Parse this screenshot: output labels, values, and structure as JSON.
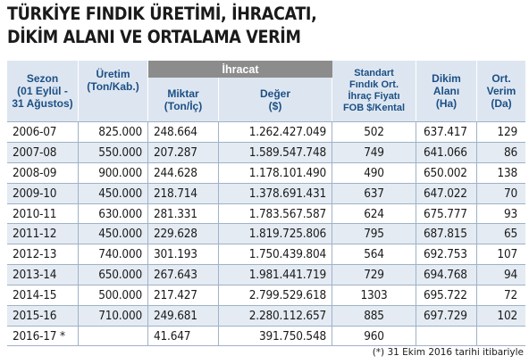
{
  "title": {
    "line1": "TÜRKİYE FINDIK ÜRETİMİ, İHRACATI,",
    "line2": "DİKİM ALANI VE ORTALAMA VERİM"
  },
  "headers": {
    "sezon": [
      "Sezon",
      "(01 Eylül -",
      "31 Ağustos)"
    ],
    "uretim": [
      "Üretim",
      "(Ton/Kab.)"
    ],
    "ihracat": "İhracat",
    "miktar": [
      "Miktar",
      "(Ton/İç)"
    ],
    "deger": [
      "Değer",
      "($)"
    ],
    "standart": [
      "Standart",
      "Fındık Ort.",
      "İhraç Fiyatı",
      "FOB $/Kental"
    ],
    "dikim": [
      "Dikim",
      "Alanı",
      "(Ha)"
    ],
    "verim": [
      "Ort.",
      "Verim",
      "(Da)"
    ]
  },
  "rows": [
    [
      "2006-07",
      "825.000",
      "248.664",
      "1.262.427.049",
      "502",
      "637.417",
      "129"
    ],
    [
      "2007-08",
      "550.000",
      "207.287",
      "1.589.547.748",
      "749",
      "641.066",
      "86"
    ],
    [
      "2008-09",
      "900.000",
      "244.628",
      "1.178.101.490",
      "490",
      "650.002",
      "138"
    ],
    [
      "2009-10",
      "450.000",
      "218.714",
      "1.378.691.431",
      "637",
      "647.022",
      "70"
    ],
    [
      "2010-11",
      "630.000",
      "281.331",
      "1.783.567.587",
      "624",
      "675.777",
      "93"
    ],
    [
      "2011-12",
      "450.000",
      "229.628",
      "1.819.725.806",
      "795",
      "687.815",
      "65"
    ],
    [
      "2012-13",
      "740.000",
      "301.193",
      "1.750.439.804",
      "564",
      "692.753",
      "107"
    ],
    [
      "2013-14",
      "650.000",
      "267.643",
      "1.981.441.719",
      "729",
      "694.768",
      "94"
    ],
    [
      "2014-15",
      "500.000",
      "217.427",
      "2.799.529.618",
      "1303",
      "695.722",
      "72"
    ],
    [
      "2015-16",
      "710.000",
      "249.681",
      "2.280.112.657",
      "885",
      "697.729",
      "102"
    ],
    [
      "2016-17 *",
      "",
      "41.647",
      "391.750.548",
      "960",
      "",
      ""
    ]
  ],
  "footnote": "(*) 31 Ekim 2016 tarihi itibariyle",
  "colors": {
    "header_bg": "#dde6f0",
    "header_text": "#1c4f86",
    "ihracat_band": "#8c8c8c",
    "stripe": "#e4ebf3"
  }
}
